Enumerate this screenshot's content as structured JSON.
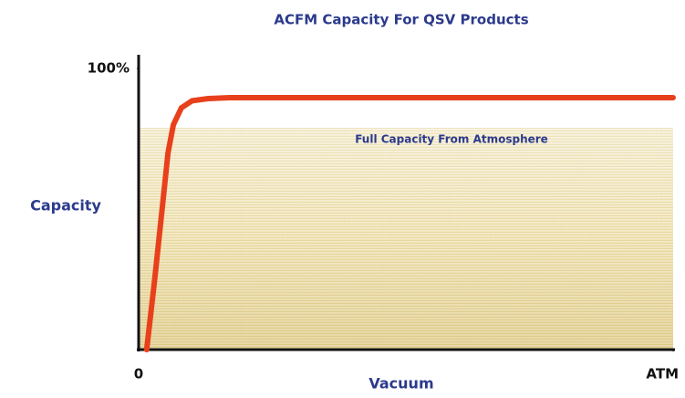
{
  "chart_data": {
    "type": "line",
    "title": "ACFM Capacity For QSV Products",
    "xlabel": "Vacuum",
    "ylabel": "Capacity",
    "annotation": "Full Capacity From Atmosphere",
    "x": [
      1.5,
      3,
      4.5,
      5.5,
      6.5,
      8,
      10,
      13,
      17,
      100
    ],
    "values": [
      0,
      25,
      52,
      70,
      80,
      86,
      88.5,
      89.3,
      89.6,
      89.6
    ],
    "color": "#e8401c",
    "xlim": [
      0,
      100
    ],
    "xticks": [
      0,
      {
        "value": 100,
        "label": "ATM"
      }
    ],
    "ylim": [
      0,
      100
    ],
    "yticks": [
      {
        "value": 100,
        "label": "100%"
      }
    ],
    "grid": false
  }
}
